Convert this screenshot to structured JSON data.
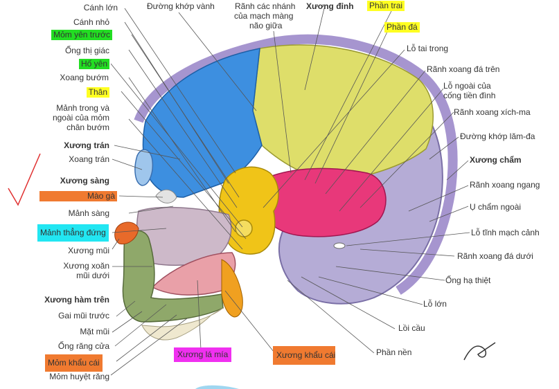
{
  "colors": {
    "parietal": "#dede6a",
    "frontal": "#3d8fe0",
    "occipital": "#b5acd6",
    "temporal": "#e8387a",
    "sphenoid": "#f0c418",
    "nasal_septum": "#cdb9c9",
    "maxilla": "#8fa86a",
    "palatine": "#e9a0a8",
    "highlight_green": "#22dd22",
    "highlight_yellow": "#ffff22",
    "highlight_orange": "#f07a30",
    "highlight_cyan": "#22e6f2",
    "highlight_magenta": "#f030f0"
  },
  "labels": {
    "canh_lon": "Cánh lớn",
    "canh_nho": "Cánh nhỏ",
    "mom_yen_truoc": "Mỏm yên trước",
    "ong_thi_giac": "Ống thị giác",
    "ho_yen": "Hố yên",
    "xoang_buom": "Xoang bướm",
    "than": "Thân",
    "manh_trong_1": "Mảnh trong và",
    "manh_trong_2": "ngoài của mỏm",
    "manh_trong_3": "chân bướm",
    "xuong_tran": "Xương trán",
    "xoang_tran": "Xoang trán",
    "xuong_sang": "Xương sàng",
    "mao_ga": "Mào gà",
    "manh_sang": "Mảnh sàng",
    "manh_thang_dung": "Mảnh thẳng đứng",
    "xuong_mui": "Xương mũi",
    "xuong_xoan_1": "Xương xoăn",
    "xuong_xoan_2": "mũi dưới",
    "xuong_ham_tren": "Xương hàm trên",
    "gai_mui_truoc": "Gai mũi trước",
    "mat_mui": "Mặt mũi",
    "ong_rang_cua": "Ống răng cửa",
    "mom_khau_cai": "Mỏm khẩu cái",
    "mom_huyet_rang": "Mỏm huyệt răng",
    "duong_khop_vanh": "Đường khớp vành",
    "ranh_1": "Rãnh các nhánh",
    "ranh_2": "của mạch màng",
    "ranh_3": "não giữa",
    "xuong_dinh": "Xương đỉnh",
    "phan_trai": "Phần trai",
    "phan_da": "Phần đá",
    "lo_tai_trong": "Lỗ tai trong",
    "ranh_xoang_da_tren": "Rãnh xoang đá trên",
    "lo_ngoai_1": "Lỗ ngoài của",
    "lo_ngoai_2": "cống tiền đình",
    "ranh_xoang_xich_ma": "Rãnh xoang xích-ma",
    "duong_khop_lam_da": "Đường khớp lăm-đa",
    "xuong_cham": "Xương chẩm",
    "ranh_xoang_ngang": "Rãnh xoang ngang",
    "u_cham_ngoai": "Ụ chẩm ngoài",
    "lo_tinh_mach_canh": "Lỗ tĩnh mạch cảnh",
    "ranh_xoang_da_duoi": "Rãnh xoang đá dưới",
    "ong_ha_thiet": "Ống hạ thiệt",
    "lo_lon": "Lỗ lớn",
    "loi_cau": "Lồi cầu",
    "phan_nen": "Phần nền",
    "xuong_la_mia": "Xương lá mía",
    "xuong_khau_cai": "Xương khẩu cái"
  }
}
